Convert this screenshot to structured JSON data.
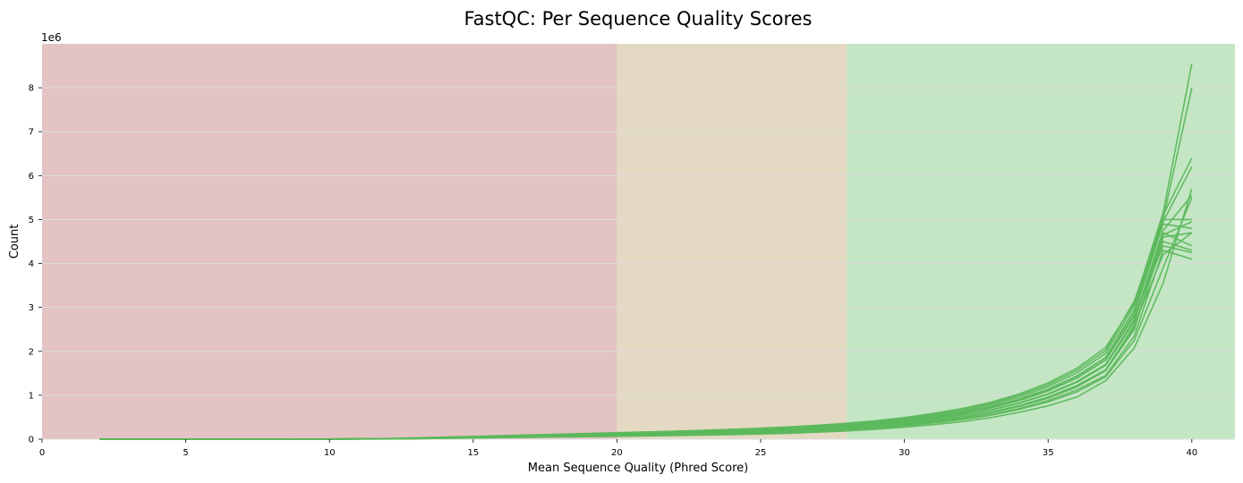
{
  "chart_data": {
    "type": "line",
    "title": "FastQC: Per Sequence Quality Scores",
    "xlabel": "Mean Sequence Quality (Phred Score)",
    "ylabel": "Count",
    "y_multiplier": "1e6",
    "xlim": [
      0,
      41.5
    ],
    "ylim": [
      0,
      9000000
    ],
    "xticks": [
      0,
      5,
      10,
      15,
      20,
      25,
      30,
      35,
      40
    ],
    "yticks": [
      0,
      1,
      2,
      3,
      4,
      5,
      6,
      7,
      8
    ],
    "grid": "horizontal",
    "line_color": "#5cb85c",
    "bands": [
      {
        "from": 0,
        "to": 20,
        "color": "#e3c3c3"
      },
      {
        "from": 20,
        "to": 28,
        "color": "#e4dac3"
      },
      {
        "from": 28,
        "to": 41.5,
        "color": "#c4e6c4"
      }
    ],
    "x": [
      2,
      10,
      12,
      13,
      14,
      15,
      16,
      17,
      18,
      19,
      20,
      21,
      22,
      23,
      24,
      25,
      26,
      27,
      28,
      29,
      30,
      31,
      32,
      33,
      34,
      35,
      36,
      37,
      38,
      39,
      40
    ],
    "series": [
      {
        "values": [
          0,
          2000,
          8000,
          15000,
          25000,
          35000,
          45000,
          55000,
          65000,
          75000,
          85000,
          95000,
          105000,
          118000,
          132000,
          148000,
          168000,
          192000,
          225000,
          265000,
          315000,
          380000,
          460000,
          560000,
          700000,
          880000,
          1120000,
          1450000,
          2350000,
          4300000,
          4100000
        ]
      },
      {
        "values": [
          0,
          2000,
          9000,
          17000,
          28000,
          39000,
          50000,
          61000,
          72000,
          83000,
          94000,
          105000,
          117000,
          131000,
          147000,
          165000,
          187000,
          214000,
          250000,
          295000,
          350000,
          420000,
          505000,
          615000,
          765000,
          960000,
          1220000,
          1580000,
          2550000,
          4500000,
          4300000
        ]
      },
      {
        "values": [
          0,
          3000,
          10000,
          19000,
          31000,
          43000,
          55000,
          67000,
          79000,
          91000,
          103000,
          115000,
          128000,
          143000,
          160000,
          180000,
          204000,
          234000,
          272000,
          320000,
          380000,
          455000,
          548000,
          665000,
          825000,
          1030000,
          1310000,
          1700000,
          2700000,
          4700000,
          4400000
        ]
      },
      {
        "values": [
          0,
          1000,
          5000,
          10000,
          18000,
          26000,
          34000,
          42000,
          50000,
          58000,
          66000,
          74000,
          82000,
          92000,
          104000,
          118000,
          135000,
          158000,
          188000,
          225000,
          272000,
          330000,
          400000,
          490000,
          610000,
          760000,
          960000,
          1330000,
          2080000,
          3550000,
          5700000
        ]
      },
      {
        "values": [
          0,
          1500,
          6000,
          12000,
          21000,
          30000,
          39000,
          48000,
          57000,
          66000,
          75000,
          84000,
          94000,
          106000,
          120000,
          136000,
          156000,
          180000,
          212000,
          252000,
          302000,
          366000,
          444000,
          543000,
          678000,
          848000,
          1075000,
          1420000,
          2250000,
          3900000,
          5500000
        ]
      },
      {
        "values": [
          0,
          2500,
          8500,
          16000,
          26000,
          36000,
          46000,
          56000,
          66000,
          76000,
          86000,
          96000,
          107000,
          120000,
          135000,
          153000,
          175000,
          202000,
          238000,
          282000,
          337000,
          406000,
          490000,
          598000,
          745000,
          935000,
          1190000,
          1560000,
          2500000,
          4600000,
          4700000
        ]
      },
      {
        "values": [
          0,
          3000,
          11000,
          21000,
          34000,
          47000,
          60000,
          73000,
          86000,
          99000,
          112000,
          125000,
          139000,
          155000,
          173000,
          194000,
          220000,
          252000,
          293000,
          344000,
          408000,
          487000,
          585000,
          710000,
          880000,
          1100000,
          1390000,
          1800000,
          2850000,
          4900000,
          4800000
        ]
      },
      {
        "values": [
          0,
          3500,
          12000,
          23000,
          37000,
          51000,
          65000,
          79000,
          93000,
          107000,
          121000,
          135000,
          150000,
          167000,
          186000,
          208000,
          235000,
          268000,
          310000,
          362000,
          428000,
          510000,
          612000,
          740000,
          915000,
          1140000,
          1440000,
          1860000,
          2950000,
          5000000,
          5000000
        ]
      },
      {
        "values": [
          0,
          2000,
          9000,
          18000,
          30000,
          42000,
          54000,
          66000,
          78000,
          90000,
          102000,
          114000,
          127000,
          142000,
          159000,
          179000,
          203000,
          233000,
          271000,
          318000,
          378000,
          452000,
          544000,
          660000,
          818000,
          1020000,
          1295000,
          1680000,
          2680000,
          4650000,
          4950000
        ]
      },
      {
        "values": [
          0,
          2500,
          10000,
          19000,
          31000,
          43000,
          55000,
          67000,
          79000,
          91000,
          103000,
          115000,
          128000,
          143000,
          160000,
          180000,
          204000,
          234000,
          272000,
          320000,
          380000,
          455000,
          548000,
          665000,
          825000,
          1030000,
          1310000,
          1700000,
          2720000,
          4750000,
          5550000
        ]
      },
      {
        "values": [
          0,
          3000,
          11500,
          22000,
          36000,
          50000,
          64000,
          78000,
          92000,
          106000,
          120000,
          134000,
          149000,
          166000,
          185000,
          207000,
          234000,
          267000,
          309000,
          361000,
          427000,
          509000,
          610000,
          738000,
          912000,
          1135000,
          1435000,
          1855000,
          2930000,
          4950000,
          6200000
        ]
      },
      {
        "values": [
          0,
          3500,
          13000,
          25000,
          40000,
          55000,
          70000,
          85000,
          100000,
          115000,
          130000,
          145000,
          161000,
          179000,
          199000,
          222000,
          250000,
          285000,
          328000,
          383000,
          452000,
          538000,
          644000,
          778000,
          960000,
          1195000,
          1510000,
          1950000,
          3050000,
          5100000,
          6400000
        ]
      },
      {
        "values": [
          0,
          4000,
          14000,
          27000,
          43000,
          59000,
          75000,
          91000,
          107000,
          123000,
          139000,
          155000,
          172000,
          191000,
          212000,
          236000,
          265000,
          301000,
          346000,
          402000,
          473000,
          562000,
          672000,
          810000,
          998000,
          1240000,
          1565000,
          2020000,
          3150000,
          5000000,
          8000000
        ]
      },
      {
        "values": [
          0,
          4500,
          15000,
          29000,
          46000,
          63000,
          80000,
          97000,
          114000,
          131000,
          148000,
          165000,
          183000,
          203000,
          225000,
          250000,
          280000,
          317000,
          363000,
          420000,
          493000,
          584000,
          697000,
          838000,
          1030000,
          1280000,
          1615000,
          2085000,
          3100000,
          5150000,
          8550000
        ]
      },
      {
        "values": [
          0,
          3000,
          11000,
          21000,
          34000,
          47000,
          60000,
          73000,
          86000,
          99000,
          112000,
          125000,
          139000,
          155000,
          173000,
          194000,
          220000,
          252000,
          293000,
          344000,
          408000,
          487000,
          585000,
          710000,
          880000,
          1100000,
          1390000,
          1800000,
          2800000,
          4400000,
          4250000
        ]
      },
      {
        "values": [
          0,
          2000,
          8000,
          16000,
          27000,
          38000,
          49000,
          60000,
          71000,
          82000,
          93000,
          104000,
          116000,
          130000,
          146000,
          164000,
          186000,
          213000,
          248000,
          292000,
          347000,
          416000,
          501000,
          610000,
          758000,
          950000,
          1208000,
          1568000,
          2600000,
          4200000,
          4700000
        ]
      }
    ]
  }
}
